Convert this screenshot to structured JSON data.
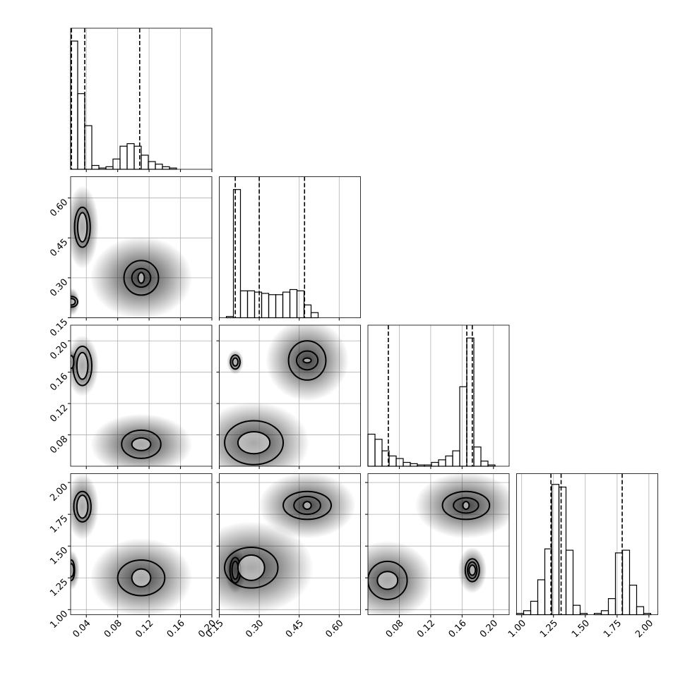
{
  "chart_data": {
    "type": "corner",
    "grid": true,
    "color": "#000000",
    "parameters": [
      {
        "lim": [
          0.02,
          0.2
        ],
        "ticks": [
          0.04,
          0.08,
          0.12,
          0.16,
          {
            "value": 0.2,
            "label": "0.20"
          }
        ],
        "quantiles": [
          0.021,
          0.038,
          0.108
        ],
        "bins": [
          0.02,
          0.029,
          0.038,
          0.047,
          0.056,
          0.065,
          0.074,
          0.083,
          0.092,
          0.101,
          0.11,
          0.119,
          0.128,
          0.137,
          0.146,
          0.155,
          0.164,
          0.173,
          0.182,
          0.191,
          0.2
        ],
        "counts": [
          100,
          59,
          34,
          3,
          1,
          2,
          8,
          18,
          20,
          18,
          11,
          6,
          4,
          2,
          1,
          0,
          0,
          0,
          0,
          0
        ],
        "ylim": [
          0,
          110
        ]
      },
      {
        "lim": [
          0.15,
          0.68
        ],
        "ticks": [
          0.15,
          {
            "value": 0.3,
            "label": "0.30"
          },
          0.45,
          {
            "value": 0.6,
            "label": "0.60"
          }
        ],
        "quantiles": [
          0.21,
          0.3,
          0.47
        ],
        "bins": [
          0.15,
          0.1765,
          0.203,
          0.2295,
          0.256,
          0.2825,
          0.309,
          0.3355,
          0.362,
          0.3885,
          0.415,
          0.4415,
          0.468,
          0.4945,
          0.521,
          0.5475,
          0.574,
          0.6005,
          0.627,
          0.6535,
          0.68
        ],
        "counts": [
          0,
          1,
          100,
          21,
          21,
          20,
          19,
          18,
          18,
          20,
          22,
          21,
          10,
          4,
          0,
          0,
          0,
          0,
          0,
          0
        ],
        "ylim": [
          0,
          110
        ]
      },
      {
        "lim": [
          0.04,
          0.22
        ],
        "ticks": [
          0.08,
          0.12,
          0.16,
          {
            "value": 0.2,
            "label": "0.20"
          }
        ],
        "quantiles": [
          0.066,
          0.166,
          0.173
        ],
        "bins": [
          0.04,
          0.049,
          0.058,
          0.067,
          0.076,
          0.085,
          0.094,
          0.103,
          0.112,
          0.121,
          0.13,
          0.139,
          0.148,
          0.157,
          0.166,
          0.175,
          0.184,
          0.193,
          0.202,
          0.211,
          0.22
        ],
        "counts": [
          25,
          21,
          12,
          8,
          6,
          3,
          2,
          1,
          1,
          3,
          5,
          8,
          12,
          62,
          100,
          15,
          4,
          1,
          0,
          0
        ],
        "ylim": [
          0,
          110
        ]
      },
      {
        "lim": [
          0.96,
          2.07
        ],
        "ticks": [
          {
            "value": 1,
            "label": "1.00"
          },
          1.25,
          {
            "value": 1.5,
            "label": "1.50"
          },
          1.75,
          {
            "value": 2,
            "label": "2.00"
          }
        ],
        "quantiles": [
          1.23,
          1.31,
          1.79
        ],
        "bins": [
          0.96,
          1.0155,
          1.071,
          1.1265,
          1.182,
          1.2375,
          1.293,
          1.3485,
          1.404,
          1.4595,
          1.515,
          1.5705,
          1.626,
          1.6815,
          1.737,
          1.7925,
          1.848,
          1.9035,
          1.959,
          2.0145,
          2.07
        ],
        "counts": [
          1,
          3,
          10,
          26,
          49,
          97,
          95,
          48,
          7,
          1,
          0,
          1,
          3,
          12,
          46,
          48,
          22,
          6,
          1,
          0
        ],
        "ylim": [
          0,
          105
        ]
      }
    ],
    "pairs": [
      {
        "clusters": [
          {
            "center": [
              0.035,
              0.49
            ],
            "spread": [
              0.008,
              0.06
            ],
            "contours": [
              [
                0.01,
                0.075
              ],
              [
                0.006,
                0.055
              ]
            ]
          },
          {
            "center": [
              0.11,
              0.3
            ],
            "spread": [
              0.025,
              0.06
            ],
            "contours": [
              [
                0.022,
                0.065
              ],
              [
                0.012,
                0.035
              ],
              [
                0.004,
                0.02
              ]
            ]
          },
          {
            "center": [
              0.021,
              0.21
            ],
            "spread": [
              0.004,
              0.02
            ],
            "contours": [
              [
                0.008,
                0.02
              ],
              [
                0.005,
                0.012
              ]
            ]
          }
        ]
      },
      {
        "clusters": [
          {
            "center": [
              0.035,
              0.168
            ],
            "spread": [
              0.008,
              0.015
            ],
            "contours": [
              [
                0.012,
                0.025
              ],
              [
                0.007,
                0.017
              ]
            ]
          },
          {
            "center": [
              0.11,
              0.068
            ],
            "spread": [
              0.025,
              0.015
            ],
            "contours": [
              [
                0.025,
                0.018
              ],
              [
                0.012,
                0.008
              ]
            ]
          },
          {
            "center": [
              0.021,
              0.173
            ],
            "spread": [
              0.003,
              0.006
            ],
            "contours": [
              [
                0.003,
                0.008
              ]
            ]
          }
        ]
      },
      {
        "clusters": [
          {
            "center": [
              0.21,
              0.173
            ],
            "spread": [
              0.012,
              0.006
            ],
            "contours": [
              [
                0.018,
                0.009
              ],
              [
                0.01,
                0.005
              ]
            ]
          },
          {
            "center": [
              0.48,
              0.175
            ],
            "spread": [
              0.06,
              0.02
            ],
            "contours": [
              [
                0.07,
                0.025
              ],
              [
                0.04,
                0.012
              ],
              [
                0.015,
                0.003
              ]
            ]
          },
          {
            "center": [
              0.28,
              0.07
            ],
            "spread": [
              0.08,
              0.02
            ],
            "contours": [
              [
                0.11,
                0.028
              ],
              [
                0.06,
                0.014
              ]
            ]
          }
        ]
      },
      {
        "clusters": [
          {
            "center": [
              0.035,
              1.81
            ],
            "spread": [
              0.008,
              0.1
            ],
            "contours": [
              [
                0.011,
                0.12
              ],
              [
                0.007,
                0.09
              ]
            ]
          },
          {
            "center": [
              0.11,
              1.25
            ],
            "spread": [
              0.025,
              0.12
            ],
            "contours": [
              [
                0.03,
                0.14
              ],
              [
                0.012,
                0.07
              ]
            ]
          },
          {
            "center": [
              0.021,
              1.31
            ],
            "spread": [
              0.004,
              0.06
            ],
            "contours": [
              [
                0.004,
                0.08
              ],
              [
                0.003,
                0.05
              ]
            ]
          }
        ]
      },
      {
        "clusters": [
          {
            "center": [
              0.21,
              1.31
            ],
            "spread": [
              0.015,
              0.07
            ],
            "contours": [
              [
                0.02,
                0.1
              ],
              [
                0.012,
                0.07
              ]
            ]
          },
          {
            "center": [
              0.48,
              1.82
            ],
            "spread": [
              0.07,
              0.1
            ],
            "contours": [
              [
                0.09,
                0.11
              ],
              [
                0.05,
                0.07
              ],
              [
                0.015,
                0.03
              ]
            ]
          },
          {
            "center": [
              0.27,
              1.33
            ],
            "spread": [
              0.09,
              0.14
            ],
            "contours": [
              [
                0.1,
                0.16
              ],
              [
                0.05,
                0.1
              ]
            ]
          }
        ]
      },
      {
        "clusters": [
          {
            "center": [
              0.173,
              1.31
            ],
            "spread": [
              0.007,
              0.07
            ],
            "contours": [
              [
                0.009,
                0.09
              ],
              [
                0.006,
                0.065
              ],
              [
                0.004,
                0.04
              ]
            ]
          },
          {
            "center": [
              0.165,
              1.82
            ],
            "spread": [
              0.025,
              0.1
            ],
            "contours": [
              [
                0.03,
                0.11
              ],
              [
                0.016,
                0.06
              ],
              [
                0.004,
                0.03
              ]
            ]
          },
          {
            "center": [
              0.065,
              1.23
            ],
            "spread": [
              0.022,
              0.12
            ],
            "contours": [
              [
                0.025,
                0.15
              ],
              [
                0.013,
                0.07
              ]
            ]
          }
        ]
      }
    ]
  }
}
